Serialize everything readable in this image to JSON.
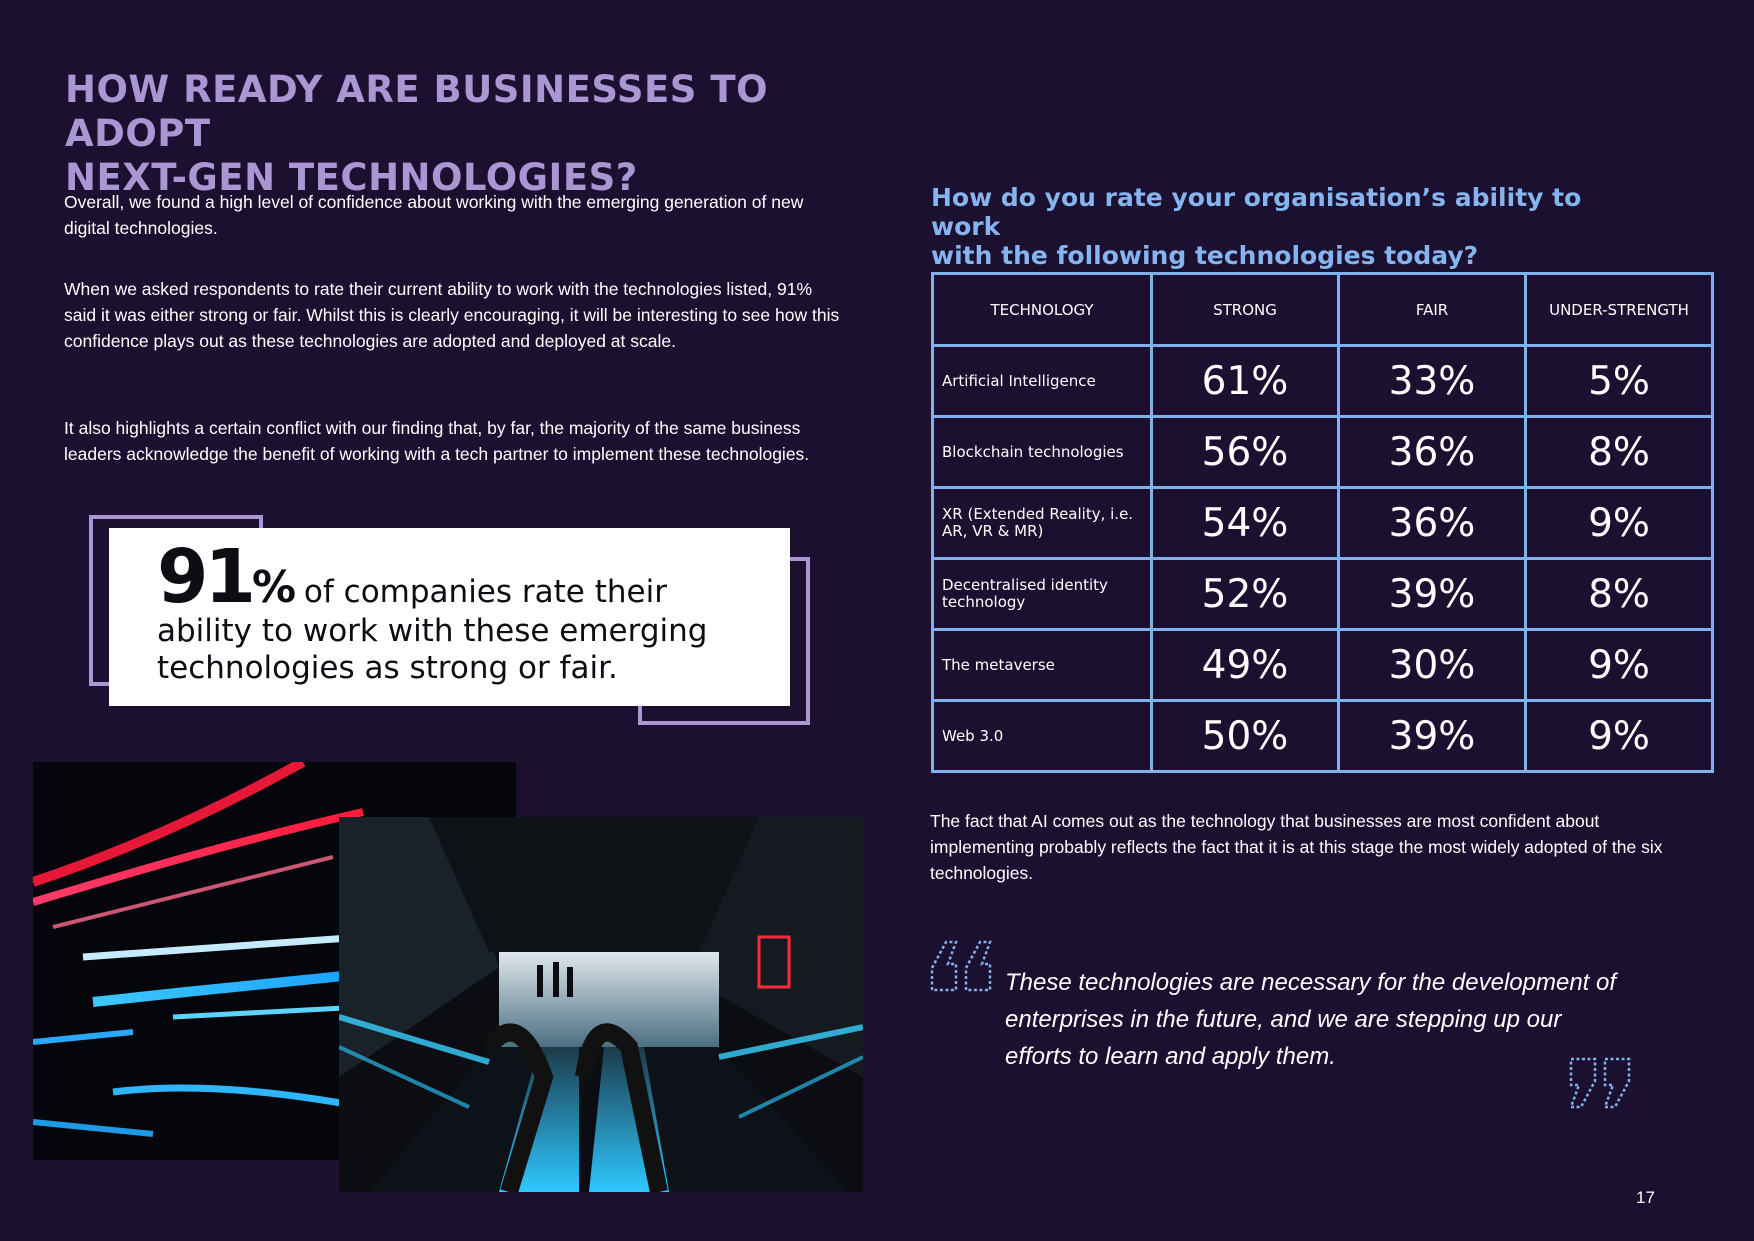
{
  "page": {
    "title_line1": "HOW READY ARE BUSINESSES TO ADOPT",
    "title_line2": "NEXT-GEN TECHNOLOGIES?",
    "page_number": "17"
  },
  "intro": {
    "p1": "Overall, we found a high level of confidence about working with the emerging generation of new digital technologies.",
    "p2": "When we asked respondents to rate their current ability to work with the technologies listed, 91% said it was either strong or fair. Whilst this is clearly encouraging, it will be interesting to see how this confidence plays out as these technologies are adopted and deployed at scale.",
    "p3": "It also highlights a certain conflict with our finding that, by far, the majority of the same business leaders acknowledge the benefit of working with a tech partner to implement these technologies."
  },
  "callout": {
    "number": "91",
    "percent": "%",
    "line1": " of companies rate their",
    "line2": "ability to work with these emerging",
    "line3": "technologies as strong or fair."
  },
  "table": {
    "question_line1": "How do you rate your organisation’s ability to work",
    "question_line2": "with the following technologies today?",
    "headers": [
      "TECHNOLOGY",
      "STRONG",
      "FAIR",
      "UNDER-STRENGTH"
    ],
    "rows": [
      {
        "name": "Artificial Intelligence",
        "strong": "61%",
        "fair": "33%",
        "under": "5%"
      },
      {
        "name": "Blockchain technologies",
        "strong": "56%",
        "fair": "36%",
        "under": "8%"
      },
      {
        "name": "XR (Extended Reality, i.e. AR, VR & MR)",
        "strong": "54%",
        "fair": "36%",
        "under": "9%"
      },
      {
        "name": "Decentralised identity technology",
        "strong": "52%",
        "fair": "39%",
        "under": "8%"
      },
      {
        "name": "The metaverse",
        "strong": "49%",
        "fair": "30%",
        "under": "9%"
      },
      {
        "name": "Web 3.0",
        "strong": "50%",
        "fair": "39%",
        "under": "9%"
      }
    ]
  },
  "after_table": "The fact that AI comes out as the technology that businesses are most confident about implementing probably reflects the fact that it is at this stage the most widely adopted of the six technologies.",
  "quote": {
    "text": "These technologies are necessary for the development of enterprises in the future, and we are stepping up our efforts to learn and apply them."
  },
  "icons": {
    "quote_open": "quote-open-icon",
    "quote_close": "quote-close-icon"
  },
  "colors": {
    "background": "#1c1030",
    "title": "#a996d3",
    "accent_blue": "#7fb1ea",
    "question": "#85b4ef"
  }
}
